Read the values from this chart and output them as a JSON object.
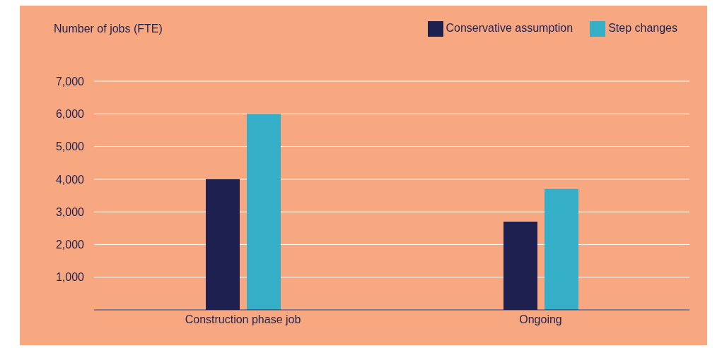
{
  "chart_data": {
    "type": "bar",
    "ylabel": "Number of jobs (FTE)",
    "categories": [
      "Construction phase job",
      "Ongoing"
    ],
    "series": [
      {
        "name": "Conservative assumption",
        "color": "#1e2150",
        "values": [
          4000,
          2700
        ]
      },
      {
        "name": "Step changes",
        "color": "#35aec8",
        "values": [
          6000,
          3700
        ]
      }
    ],
    "ylim": [
      0,
      7000
    ],
    "yticks": [
      {
        "value": 0,
        "label": null
      },
      {
        "value": 1000,
        "label": "1,000"
      },
      {
        "value": 2000,
        "label": "2,000"
      },
      {
        "value": 3000,
        "label": "3,000"
      },
      {
        "value": 4000,
        "label": "4,000"
      },
      {
        "value": 5000,
        "label": "5,000"
      },
      {
        "value": 6000,
        "label": "6,000"
      },
      {
        "value": 7000,
        "label": "7,000"
      }
    ],
    "grid": "y",
    "legend": "top right"
  }
}
